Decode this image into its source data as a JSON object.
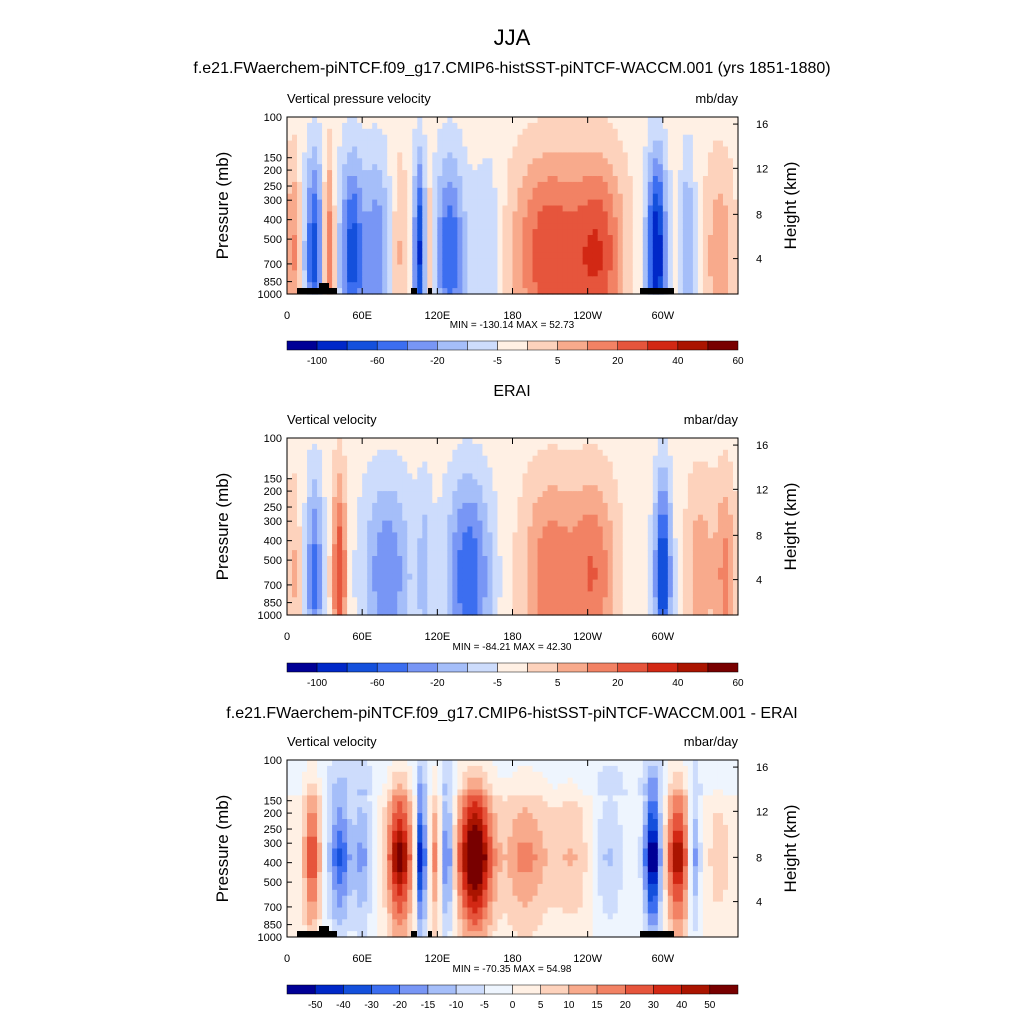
{
  "figure": {
    "title": "JJA"
  },
  "chart_data": [
    {
      "type": "heatmap",
      "title": "f.e21.FWaerchem-piNTCF.f09_g17.CMIP6-histSST-piNTCF-WACCM.001 (yrs 1851-1880)",
      "left_label": "Vertical pressure velocity",
      "right_label": "mb/day",
      "ylabel": "Pressure (mb)",
      "y2label": "Height (km)",
      "stats": "MIN = -130.14  MAX =  52.73",
      "x_ticks": [
        "0",
        "60E",
        "120E",
        "180",
        "120W",
        "60W"
      ],
      "y_ticks": [
        "100",
        "150",
        "200",
        "250",
        "300",
        "400",
        "500",
        "700",
        "850",
        "1000"
      ],
      "y2_ticks": [
        "16",
        "12",
        "8",
        "4"
      ],
      "colorbar": {
        "labels": [
          "-100",
          "-60",
          "-20",
          "-5",
          "5",
          "20",
          "40",
          "60"
        ],
        "colors": [
          "#000096",
          "#0028c8",
          "#1450dc",
          "#3c6ef0",
          "#7896f5",
          "#a5bef9",
          "#cddcfc",
          "#fff0e4",
          "#fdd2bc",
          "#f8aa8c",
          "#f28264",
          "#e6553c",
          "#d22814",
          "#aa1400",
          "#780000"
        ]
      },
      "range": [
        -130.14,
        52.73
      ],
      "panel_index": 0,
      "has_topo": true
    },
    {
      "type": "heatmap",
      "title": "ERAI",
      "left_label": "Vertical velocity",
      "right_label": "mbar/day",
      "ylabel": "Pressure (mb)",
      "y2label": "Height (km)",
      "stats": "MIN = -84.21  MAX =  42.30",
      "x_ticks": [
        "0",
        "60E",
        "120E",
        "180",
        "120W",
        "60W"
      ],
      "y_ticks": [
        "100",
        "150",
        "200",
        "250",
        "300",
        "400",
        "500",
        "700",
        "850",
        "1000"
      ],
      "y2_ticks": [
        "16",
        "12",
        "8",
        "4"
      ],
      "colorbar": {
        "labels": [
          "-100",
          "-60",
          "-20",
          "-5",
          "5",
          "20",
          "40",
          "60"
        ],
        "colors": [
          "#000096",
          "#0028c8",
          "#1450dc",
          "#3c6ef0",
          "#7896f5",
          "#a5bef9",
          "#cddcfc",
          "#fff0e4",
          "#fdd2bc",
          "#f8aa8c",
          "#f28264",
          "#e6553c",
          "#d22814",
          "#aa1400",
          "#780000"
        ]
      },
      "range": [
        -84.21,
        42.3
      ],
      "panel_index": 1,
      "has_topo": false
    },
    {
      "type": "heatmap",
      "title": "f.e21.FWaerchem-piNTCF.f09_g17.CMIP6-histSST-piNTCF-WACCM.001 - ERAI",
      "left_label": "Vertical velocity",
      "right_label": "mbar/day",
      "ylabel": "Pressure (mb)",
      "y2label": "Height (km)",
      "stats": "MIN = -70.35  MAX =  54.98",
      "x_ticks": [
        "0",
        "60E",
        "120E",
        "180",
        "120W",
        "60W"
      ],
      "y_ticks": [
        "100",
        "150",
        "200",
        "250",
        "300",
        "400",
        "500",
        "700",
        "850",
        "1000"
      ],
      "y2_ticks": [
        "16",
        "12",
        "8",
        "4"
      ],
      "colorbar": {
        "labels": [
          "-50",
          "-40",
          "-30",
          "-20",
          "-15",
          "-10",
          "-5",
          "0",
          "5",
          "10",
          "15",
          "20",
          "30",
          "40",
          "50"
        ],
        "colors": [
          "#000096",
          "#0028c8",
          "#1450dc",
          "#3c6ef0",
          "#7896f5",
          "#a5bef9",
          "#cddcfc",
          "#eef5fe",
          "#fff0e4",
          "#fdd2bc",
          "#f8aa8c",
          "#f28264",
          "#e6553c",
          "#d22814",
          "#aa1400",
          "#780000"
        ]
      },
      "range": [
        -70.35,
        54.98
      ],
      "panel_index": 2,
      "has_topo": true
    }
  ]
}
